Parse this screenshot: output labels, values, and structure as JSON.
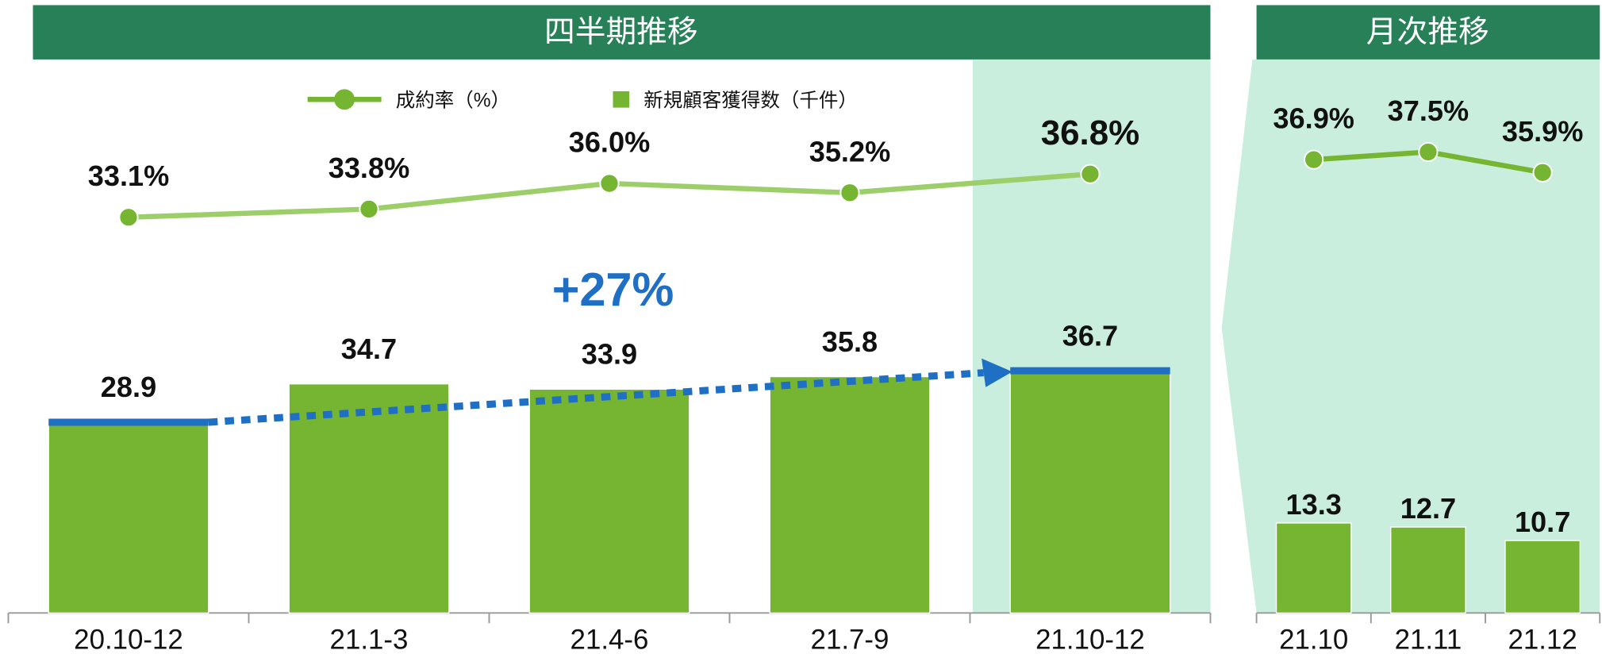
{
  "chart_data": [
    {
      "type": "combo",
      "title": "四半期推移",
      "categories": [
        "20.10-12",
        "21.1-3",
        "21.4-6",
        "21.7-9",
        "21.10-12"
      ],
      "series": [
        {
          "name": "成約率（%）",
          "kind": "line",
          "color": "#9ccf6a",
          "values": [
            33.1,
            33.8,
            36.0,
            35.2,
            36.8
          ],
          "value_labels": [
            "33.1%",
            "33.8%",
            "36.0%",
            "35.2%",
            "36.8%"
          ]
        },
        {
          "name": "新規顧客獲得数（千件）",
          "kind": "bar",
          "color": "#76b531",
          "values": [
            28.9,
            34.7,
            33.9,
            35.8,
            36.7
          ]
        }
      ],
      "annotation": "+27%"
    },
    {
      "type": "combo",
      "title": "月次推移",
      "categories": [
        "21.10",
        "21.11",
        "21.12"
      ],
      "series": [
        {
          "kind": "line",
          "color": "#76b531",
          "values": [
            36.9,
            37.5,
            35.9
          ],
          "value_labels": [
            "36.9%",
            "37.5%",
            "35.9%"
          ]
        },
        {
          "kind": "bar",
          "color": "#76b531",
          "values": [
            13.3,
            12.7,
            10.7
          ]
        }
      ]
    }
  ]
}
